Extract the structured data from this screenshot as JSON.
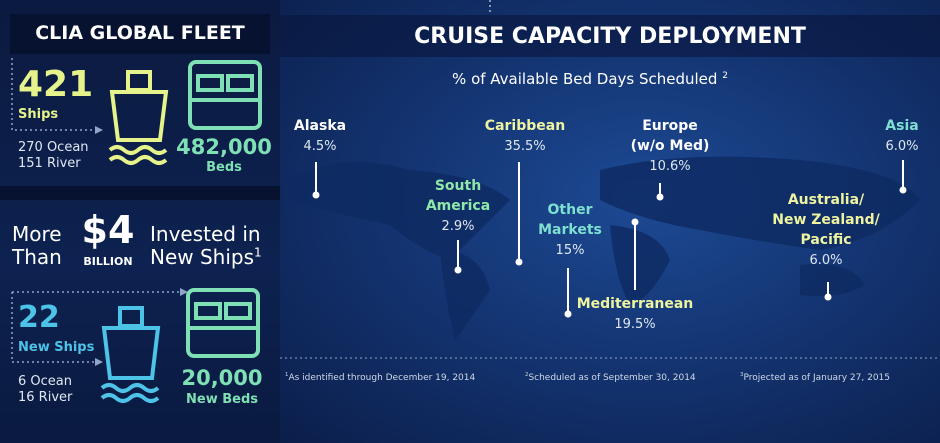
{
  "left_panel": {
    "title": "CLIA GLOBAL FLEET",
    "fleet": {
      "ships_count": "421",
      "ships_label": "Ships",
      "ocean": "270 Ocean",
      "river": "151 River",
      "beds_count": "482,000",
      "beds_label": "Beds"
    },
    "investment": {
      "line1": "More",
      "line2": "Than",
      "amount": "$4",
      "unit": "BILLION",
      "text1": "Invested in",
      "text2": "New Ships",
      "note": "1"
    },
    "new_ships": {
      "ships_count": "22",
      "ships_label": "New Ships",
      "ocean": "6 Ocean",
      "river": "16 River",
      "beds_count": "20,000",
      "beds_label": "New Beds"
    }
  },
  "right_panel": {
    "title": "CRUISE CAPACITY DEPLOYMENT",
    "subtitle": "% of Available Bed Days Scheduled",
    "subtitle_note": "2",
    "regions": [
      {
        "name_lines": [
          "Alaska"
        ],
        "value": "4.5%"
      },
      {
        "name_lines": [
          "Caribbean"
        ],
        "value": "35.5%"
      },
      {
        "name_lines": [
          "Europe",
          "(w/o Med)"
        ],
        "value": "10.6%"
      },
      {
        "name_lines": [
          "Asia"
        ],
        "value": "6.0%"
      },
      {
        "name_lines": [
          "South",
          "America"
        ],
        "value": "2.9%"
      },
      {
        "name_lines": [
          "Other",
          "Markets"
        ],
        "value": "15%"
      },
      {
        "name_lines": [
          "Australia/",
          "New Zealand/",
          "Pacific"
        ],
        "value": "6.0%"
      },
      {
        "name_lines": [
          "Mediterranean"
        ],
        "value": "19.5%"
      }
    ],
    "footnotes": [
      {
        "mark": "1",
        "text": "As identified through December 19, 2014"
      },
      {
        "mark": "2",
        "text": "Scheduled as of September 30, 2014"
      },
      {
        "mark": "3",
        "text": "Projected as of January 27, 2015"
      }
    ]
  }
}
